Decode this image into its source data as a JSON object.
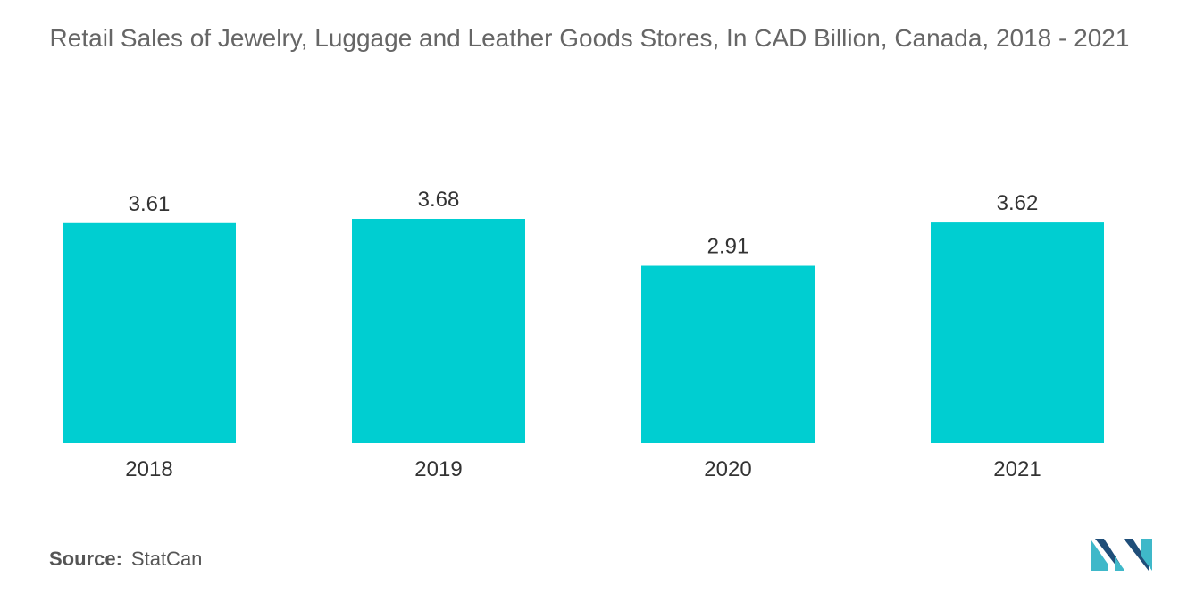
{
  "title": "Retail Sales of Jewelry, Luggage and Leather Goods Stores, In CAD Billion, Canada, 2018 - 2021",
  "source": {
    "label": "Source:",
    "value": "StatCan"
  },
  "colors": {
    "bar": "#00ced1",
    "text": "#333333",
    "logo_dark": "#1f4e79",
    "logo_light": "#3fb8c9"
  },
  "chart_data": {
    "type": "bar",
    "categories": [
      "2018",
      "2019",
      "2020",
      "2021"
    ],
    "values": [
      3.61,
      3.68,
      2.91,
      3.62
    ],
    "data_labels": [
      "3.61",
      "3.68",
      "2.91",
      "3.62"
    ],
    "title": "Retail Sales of Jewelry, Luggage and Leather Goods Stores, In CAD Billion, Canada, 2018 - 2021",
    "xlabel": "",
    "ylabel": "",
    "ylim": [
      0,
      3.68
    ],
    "grid": false,
    "legend": "none"
  },
  "logo_icon": "mordor-intelligence-logo-icon"
}
